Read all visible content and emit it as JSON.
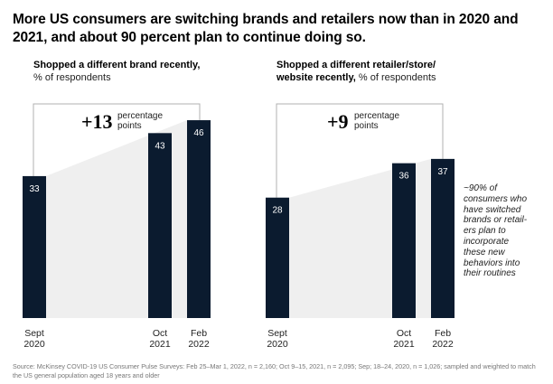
{
  "title": "More US consumers are switching brands and retailers now than in 2020 and 2021, and about 90 percent plan to continue doing so.",
  "colors": {
    "bar": "#0b1b2f",
    "shade": "#efefef",
    "bracket": "#b0b0b0"
  },
  "chart_data": [
    {
      "type": "bar",
      "title_bold": "Shopped a different brand recently,",
      "title_unit": "% of respondents",
      "categories": [
        [
          "Sept",
          "2020"
        ],
        [
          "Oct",
          "2021"
        ],
        [
          "Feb",
          "2022"
        ]
      ],
      "values": [
        33,
        43,
        46
      ],
      "delta": {
        "value": "+13",
        "unit_line1": "percentage",
        "unit_line2": "points"
      },
      "ylim": [
        0,
        50
      ],
      "grid": false
    },
    {
      "type": "bar",
      "title_bold": "Shopped a different retailer/store/ website recently,",
      "title_unit": "% of respondents",
      "categories": [
        [
          "Sept",
          "2020"
        ],
        [
          "Oct",
          "2021"
        ],
        [
          "Feb",
          "2022"
        ]
      ],
      "values": [
        28,
        36,
        37
      ],
      "delta": {
        "value": "+9",
        "unit_line1": "percentage",
        "unit_line2": "points"
      },
      "ylim": [
        0,
        50
      ],
      "grid": false
    }
  ],
  "annotation": [
    "~90% of",
    "consumers who",
    "have switched",
    "brands or retail-",
    "ers plan to",
    "incorporate",
    "these new",
    "behaviors into",
    "their routines"
  ],
  "source": "Source: McKinsey COVID-19 US Consumer Pulse Surveys: Feb 25–Mar 1, 2022, n = 2,160; Oct 9–15, 2021, n = 2,095; Sep; 18–24, 2020, n = 1,026; sampled and weighted to match the US general population aged 18 years and older"
}
